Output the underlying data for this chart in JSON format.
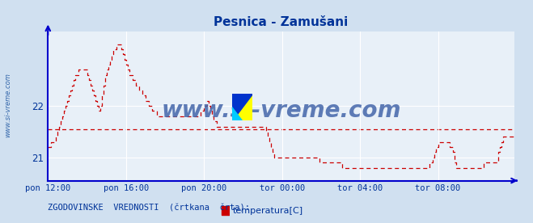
{
  "title": "Pesnica - Zamušani",
  "title_color": "#003399",
  "bg_color": "#d0e0f0",
  "plot_bg_color": "#e8f0f8",
  "line_color": "#cc0000",
  "axis_color": "#0000cc",
  "tick_color": "#003399",
  "grid_color": "#ffffff",
  "watermark": "www.si-vreme.com",
  "watermark_color": "#4466aa",
  "legend_label": "temperatura[C]",
  "legend_text": "ZGODOVINSKE  VREDNOSTI  (črtkana  črta):",
  "xlim": [
    0,
    287
  ],
  "ylim": [
    20.55,
    23.45
  ],
  "yticks": [
    21,
    22
  ],
  "xtick_labels": [
    "pon 12:00",
    "pon 16:00",
    "pon 20:00",
    "tor 00:00",
    "tor 04:00",
    "tor 08:00"
  ],
  "xtick_positions": [
    0,
    48,
    96,
    144,
    192,
    240
  ],
  "hist_value": 21.55,
  "temperature_data": [
    21.2,
    21.2,
    21.3,
    21.3,
    21.3,
    21.4,
    21.5,
    21.6,
    21.7,
    21.8,
    21.9,
    22.0,
    22.1,
    22.2,
    22.3,
    22.4,
    22.5,
    22.6,
    22.6,
    22.7,
    22.7,
    22.7,
    22.7,
    22.7,
    22.6,
    22.5,
    22.4,
    22.3,
    22.2,
    22.1,
    22.0,
    21.9,
    22.0,
    22.2,
    22.4,
    22.6,
    22.7,
    22.8,
    22.9,
    23.0,
    23.1,
    23.1,
    23.2,
    23.2,
    23.2,
    23.1,
    23.0,
    22.9,
    22.8,
    22.7,
    22.6,
    22.6,
    22.5,
    22.5,
    22.4,
    22.4,
    22.3,
    22.3,
    22.2,
    22.2,
    22.1,
    22.1,
    22.0,
    22.0,
    21.9,
    21.9,
    21.9,
    21.8,
    21.8,
    21.8,
    21.8,
    21.8,
    21.8,
    21.8,
    21.8,
    21.8,
    21.8,
    21.8,
    21.8,
    21.8,
    21.8,
    21.8,
    21.8,
    21.8,
    21.8,
    21.8,
    21.8,
    21.8,
    21.8,
    21.8,
    21.8,
    21.8,
    21.8,
    21.8,
    21.9,
    21.9,
    22.0,
    22.0,
    22.1,
    22.0,
    21.9,
    21.8,
    21.7,
    21.7,
    21.6,
    21.6,
    21.6,
    21.6,
    21.6,
    21.6,
    21.6,
    21.6,
    21.6,
    21.6,
    21.6,
    21.6,
    21.6,
    21.6,
    21.6,
    21.6,
    21.6,
    21.6,
    21.6,
    21.6,
    21.6,
    21.6,
    21.6,
    21.6,
    21.6,
    21.6,
    21.6,
    21.6,
    21.6,
    21.6,
    21.5,
    21.4,
    21.3,
    21.2,
    21.1,
    21.0,
    21.0,
    21.0,
    21.0,
    21.0,
    21.0,
    21.0,
    21.0,
    21.0,
    21.0,
    21.0,
    21.0,
    21.0,
    21.0,
    21.0,
    21.0,
    21.0,
    21.0,
    21.0,
    21.0,
    21.0,
    21.0,
    21.0,
    21.0,
    21.0,
    21.0,
    21.0,
    21.0,
    20.9,
    20.9,
    20.9,
    20.9,
    20.9,
    20.9,
    20.9,
    20.9,
    20.9,
    20.9,
    20.9,
    20.9,
    20.9,
    20.9,
    20.8,
    20.8,
    20.8,
    20.8,
    20.8,
    20.8,
    20.8,
    20.8,
    20.8,
    20.8,
    20.8,
    20.8,
    20.8,
    20.8,
    20.8,
    20.8,
    20.8,
    20.8,
    20.8,
    20.8,
    20.8,
    20.8,
    20.8,
    20.8,
    20.8,
    20.8,
    20.8,
    20.8,
    20.8,
    20.8,
    20.8,
    20.8,
    20.8,
    20.8,
    20.8,
    20.8,
    20.8,
    20.8,
    20.8,
    20.8,
    20.8,
    20.8,
    20.8,
    20.8,
    20.8,
    20.8,
    20.8,
    20.8,
    20.8,
    20.8,
    20.8,
    20.8,
    20.8,
    20.8,
    20.9,
    20.9,
    21.0,
    21.1,
    21.2,
    21.3,
    21.3,
    21.3,
    21.3,
    21.3,
    21.3,
    21.3,
    21.2,
    21.2,
    21.1,
    20.9,
    20.8,
    20.8,
    20.8,
    20.8,
    20.8,
    20.8,
    20.8,
    20.8,
    20.8,
    20.8,
    20.8,
    20.8,
    20.8,
    20.8,
    20.8,
    20.8,
    20.8,
    20.9,
    20.9,
    20.9,
    20.9,
    20.9,
    20.9,
    20.9,
    20.9,
    20.9,
    21.1,
    21.2,
    21.3,
    21.4,
    21.4,
    21.4,
    21.4,
    21.4,
    21.4,
    21.4,
    21.4,
    21.4,
    21.4
  ]
}
